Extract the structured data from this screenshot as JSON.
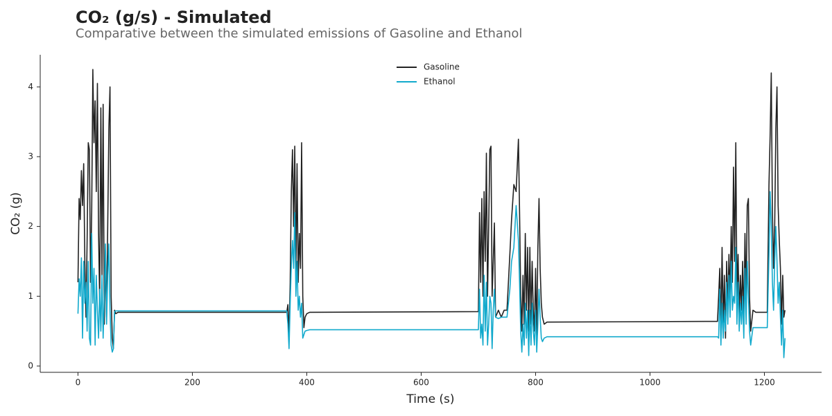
{
  "chart_data": {
    "type": "line",
    "title": "CO₂ (g/s) - Simulated",
    "subtitle": "Comparative between the simulated emissions of Gasoline and Ethanol",
    "xlabel": "Time (s)",
    "ylabel": "CO₂ (g)",
    "x": [
      0,
      2,
      4,
      6,
      8,
      10,
      12,
      14,
      16,
      18,
      20,
      22,
      24,
      26,
      28,
      30,
      32,
      34,
      36,
      38,
      40,
      42,
      44,
      46,
      48,
      50,
      52,
      54,
      56,
      58,
      60,
      62,
      64,
      66,
      70,
      365,
      367,
      369,
      371,
      373,
      375,
      377,
      379,
      381,
      383,
      385,
      387,
      389,
      391,
      393,
      395,
      397,
      400,
      405,
      700,
      702,
      704,
      706,
      708,
      710,
      712,
      714,
      716,
      718,
      720,
      722,
      724,
      726,
      728,
      730,
      735,
      740,
      745,
      750,
      755,
      758,
      762,
      766,
      770,
      772,
      774,
      776,
      778,
      780,
      782,
      784,
      786,
      788,
      790,
      792,
      794,
      796,
      798,
      800,
      802,
      804,
      806,
      808,
      810,
      812,
      815,
      820,
      1118,
      1120,
      1122,
      1124,
      1126,
      1128,
      1130,
      1132,
      1134,
      1136,
      1138,
      1140,
      1142,
      1144,
      1146,
      1148,
      1150,
      1152,
      1154,
      1156,
      1158,
      1160,
      1162,
      1164,
      1166,
      1168,
      1170,
      1172,
      1174,
      1176,
      1180,
      1185,
      1190,
      1195,
      1200,
      1205,
      1208,
      1210,
      1212,
      1214,
      1216,
      1218,
      1220,
      1222,
      1224,
      1226,
      1228,
      1230,
      1232,
      1234,
      1236
    ],
    "series": [
      {
        "name": "Gasoline",
        "color": "#222222",
        "values": [
          1.2,
          2.4,
          2.1,
          2.8,
          2.3,
          2.9,
          1.5,
          0.7,
          1.8,
          3.2,
          3.1,
          1.2,
          2.2,
          4.25,
          3.2,
          3.8,
          2.5,
          4.05,
          1.9,
          0.9,
          3.7,
          1.3,
          3.75,
          0.6,
          1.6,
          0.7,
          2.0,
          3.4,
          4.0,
          1.0,
          0.4,
          0.25,
          0.8,
          0.75,
          0.77,
          0.77,
          0.88,
          0.4,
          1.2,
          2.5,
          3.1,
          2.0,
          3.15,
          1.3,
          2.9,
          1.2,
          1.9,
          1.4,
          3.2,
          1.0,
          0.55,
          0.7,
          0.75,
          0.77,
          0.78,
          2.2,
          1.2,
          2.4,
          1.0,
          2.5,
          1.5,
          3.05,
          1.0,
          2.0,
          3.1,
          3.15,
          1.0,
          1.5,
          2.05,
          0.7,
          0.8,
          0.7,
          0.8,
          0.8,
          1.6,
          2.1,
          2.6,
          2.5,
          3.25,
          2.2,
          1.0,
          0.5,
          1.3,
          0.6,
          1.9,
          0.8,
          1.7,
          0.5,
          1.7,
          0.6,
          1.5,
          0.8,
          0.5,
          1.4,
          0.4,
          1.7,
          2.4,
          1.4,
          0.9,
          0.7,
          0.6,
          0.63,
          0.64,
          1.0,
          1.4,
          0.5,
          1.7,
          0.6,
          1.3,
          0.4,
          1.5,
          0.8,
          1.6,
          1.0,
          2.0,
          1.2,
          2.85,
          1.5,
          3.2,
          1.0,
          1.6,
          0.7,
          1.3,
          0.8,
          1.5,
          0.6,
          1.9,
          1.0,
          2.3,
          2.4,
          1.0,
          0.5,
          0.8,
          0.77,
          0.77,
          0.77,
          0.77,
          0.77,
          2.6,
          3.3,
          4.2,
          2.2,
          1.4,
          2.0,
          3.4,
          4.0,
          2.3,
          1.8,
          1.4,
          0.6,
          1.3,
          0.7,
          0.8
        ]
      },
      {
        "name": "Ethanol",
        "color": "#11a9cc",
        "values": [
          0.75,
          1.25,
          1.0,
          1.55,
          0.4,
          1.5,
          0.9,
          1.2,
          0.5,
          1.5,
          0.4,
          0.3,
          1.9,
          0.9,
          1.4,
          0.3,
          1.3,
          0.8,
          0.4,
          1.1,
          0.5,
          1.3,
          0.4,
          1.0,
          1.75,
          0.6,
          1.3,
          1.75,
          0.8,
          0.3,
          0.2,
          0.25,
          0.78,
          0.79,
          0.79,
          0.79,
          0.6,
          0.25,
          0.9,
          1.45,
          1.8,
          1.4,
          2.2,
          1.0,
          1.5,
          0.8,
          1.0,
          0.7,
          0.9,
          0.4,
          0.45,
          0.5,
          0.51,
          0.52,
          0.52,
          1.1,
          0.4,
          0.6,
          0.3,
          1.3,
          0.5,
          1.2,
          0.3,
          0.6,
          1.0,
          0.9,
          0.25,
          0.8,
          1.1,
          0.7,
          0.68,
          0.7,
          0.7,
          0.7,
          1.1,
          1.5,
          1.7,
          2.3,
          1.8,
          1.2,
          0.5,
          0.2,
          0.6,
          0.3,
          0.9,
          0.4,
          0.8,
          0.15,
          0.8,
          0.3,
          0.9,
          0.5,
          0.3,
          0.8,
          0.2,
          0.6,
          1.1,
          0.7,
          0.4,
          0.35,
          0.4,
          0.42,
          0.42,
          0.4,
          1.1,
          0.3,
          0.9,
          0.4,
          0.8,
          0.5,
          1.2,
          0.6,
          1.3,
          0.7,
          1.5,
          0.8,
          1.0,
          0.9,
          1.7,
          0.6,
          1.2,
          0.5,
          0.9,
          0.6,
          1.0,
          0.4,
          1.4,
          0.6,
          1.5,
          1.0,
          0.5,
          0.3,
          0.55,
          0.55,
          0.55,
          0.55,
          0.55,
          0.55,
          1.6,
          2.5,
          2.0,
          1.2,
          0.8,
          1.5,
          2.0,
          1.5,
          0.9,
          1.2,
          0.7,
          0.3,
          0.8,
          0.12,
          0.4
        ]
      }
    ],
    "xlim": [
      -66,
      1300
    ],
    "ylim": [
      -0.09,
      4.46
    ],
    "xticks": [
      0,
      200,
      400,
      600,
      800,
      1000,
      1200
    ],
    "yticks": [
      0,
      1,
      2,
      3,
      4
    ],
    "legend": "upper center",
    "grid": false
  }
}
